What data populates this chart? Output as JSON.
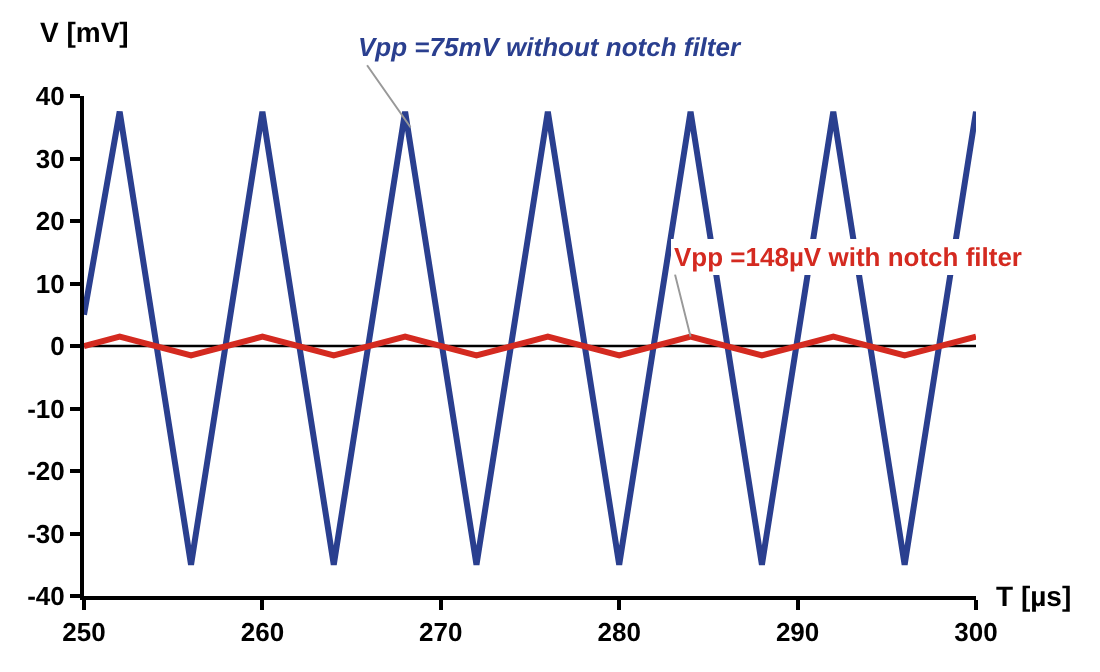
{
  "chart_data": {
    "type": "line",
    "xlabel": "T [µs]",
    "ylabel": "V [mV]",
    "xlim": [
      250,
      300
    ],
    "xticks": [
      250,
      260,
      270,
      280,
      290,
      300
    ],
    "ylim": [
      -40,
      40
    ],
    "yticks": [
      -40,
      -30,
      -20,
      -10,
      0,
      10,
      20,
      30,
      40
    ],
    "grid": false,
    "marker": "none",
    "line_style": "solid",
    "series": [
      {
        "color": "#2a3f8f",
        "x": [
          250,
          252,
          256,
          260,
          264,
          268,
          272,
          276,
          280,
          284,
          288,
          292,
          296,
          300
        ],
        "values": [
          5,
          37.5,
          -35,
          37.5,
          -35,
          37.5,
          -35,
          37.5,
          -35,
          37.5,
          -35,
          37.5,
          -35,
          37.5
        ]
      },
      {
        "color": "#d42a20",
        "x": [
          250,
          252,
          256,
          260,
          264,
          268,
          272,
          276,
          280,
          284,
          288,
          292,
          296,
          300
        ],
        "values": [
          0,
          1.5,
          -1.5,
          1.5,
          -1.5,
          1.5,
          -1.5,
          1.5,
          -1.5,
          1.5,
          -1.5,
          1.5,
          -1.5,
          1.5
        ]
      }
    ],
    "ref_lines": [
      {
        "axis": "y",
        "value": 0,
        "color": "#000000"
      }
    ],
    "annotations": [
      {
        "text": "Vpp =75mV without notch filter",
        "x": 268.3,
        "y": 35
      },
      {
        "text": "Vpp =148µV with notch filter",
        "x": 284,
        "y": 1.5
      }
    ]
  }
}
